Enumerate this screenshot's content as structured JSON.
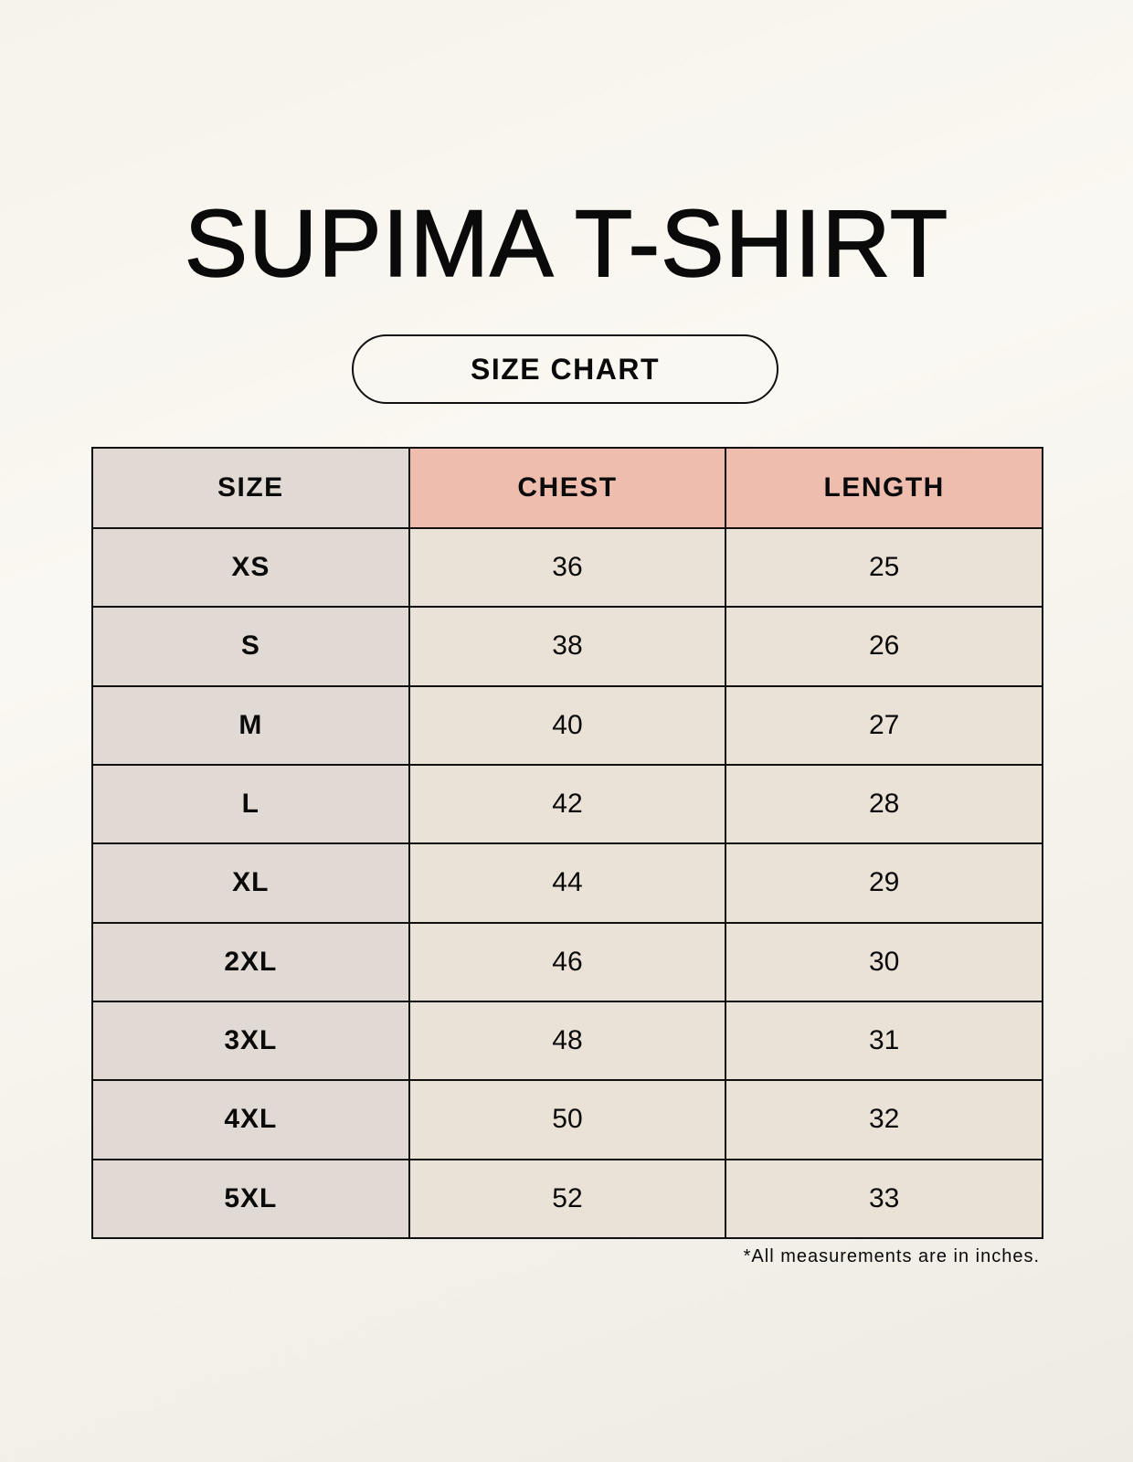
{
  "title": "SUPIMA T-SHIRT",
  "subtitle": "SIZE CHART",
  "table": {
    "headers": [
      "SIZE",
      "CHEST",
      "LENGTH"
    ],
    "rows": [
      [
        "XS",
        "36",
        "25"
      ],
      [
        "S",
        "38",
        "26"
      ],
      [
        "M",
        "40",
        "27"
      ],
      [
        "L",
        "42",
        "28"
      ],
      [
        "XL",
        "44",
        "29"
      ],
      [
        "2XL",
        "46",
        "30"
      ],
      [
        "3XL",
        "48",
        "31"
      ],
      [
        "4XL",
        "50",
        "32"
      ],
      [
        "5XL",
        "52",
        "33"
      ]
    ]
  },
  "footnote": "*All measurements are in inches.",
  "colors": {
    "size_column": "#e1d9d3",
    "header_accent": "#eebdae",
    "value_cells": "#ebe2d7"
  }
}
